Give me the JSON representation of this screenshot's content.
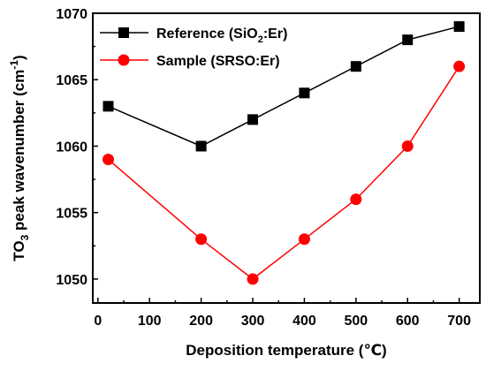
{
  "chart_data": {
    "type": "line",
    "xlabel": "Deposition temperature (℃)",
    "ylabel": {
      "prefix": "TO",
      "sub": "3",
      "mid": " peak wavenumber (cm",
      "sup": "-1",
      "suffix": ")"
    },
    "xlim": [
      -10,
      740
    ],
    "ylim": [
      1048.2,
      1070
    ],
    "xticks": [
      0,
      100,
      200,
      300,
      400,
      500,
      600,
      700
    ],
    "yticks": [
      1050,
      1055,
      1060,
      1065,
      1070
    ],
    "grid": false,
    "legend_position": "top-left",
    "series": [
      {
        "name_parts": {
          "prefix": "Reference (SiO",
          "sub": "2",
          "suffix": ":Er)"
        },
        "color": "#000000",
        "marker": "square",
        "x": [
          20,
          200,
          300,
          400,
          500,
          600,
          700
        ],
        "y": [
          1063,
          1060,
          1062,
          1064,
          1066,
          1068,
          1069
        ]
      },
      {
        "name_parts": {
          "prefix": "Sample (SRSO:Er)",
          "sub": "",
          "suffix": ""
        },
        "color": "#ff0000",
        "marker": "circle",
        "x": [
          20,
          200,
          300,
          400,
          500,
          600,
          700
        ],
        "y": [
          1059,
          1053,
          1050,
          1053,
          1056,
          1060,
          1066
        ]
      }
    ]
  }
}
